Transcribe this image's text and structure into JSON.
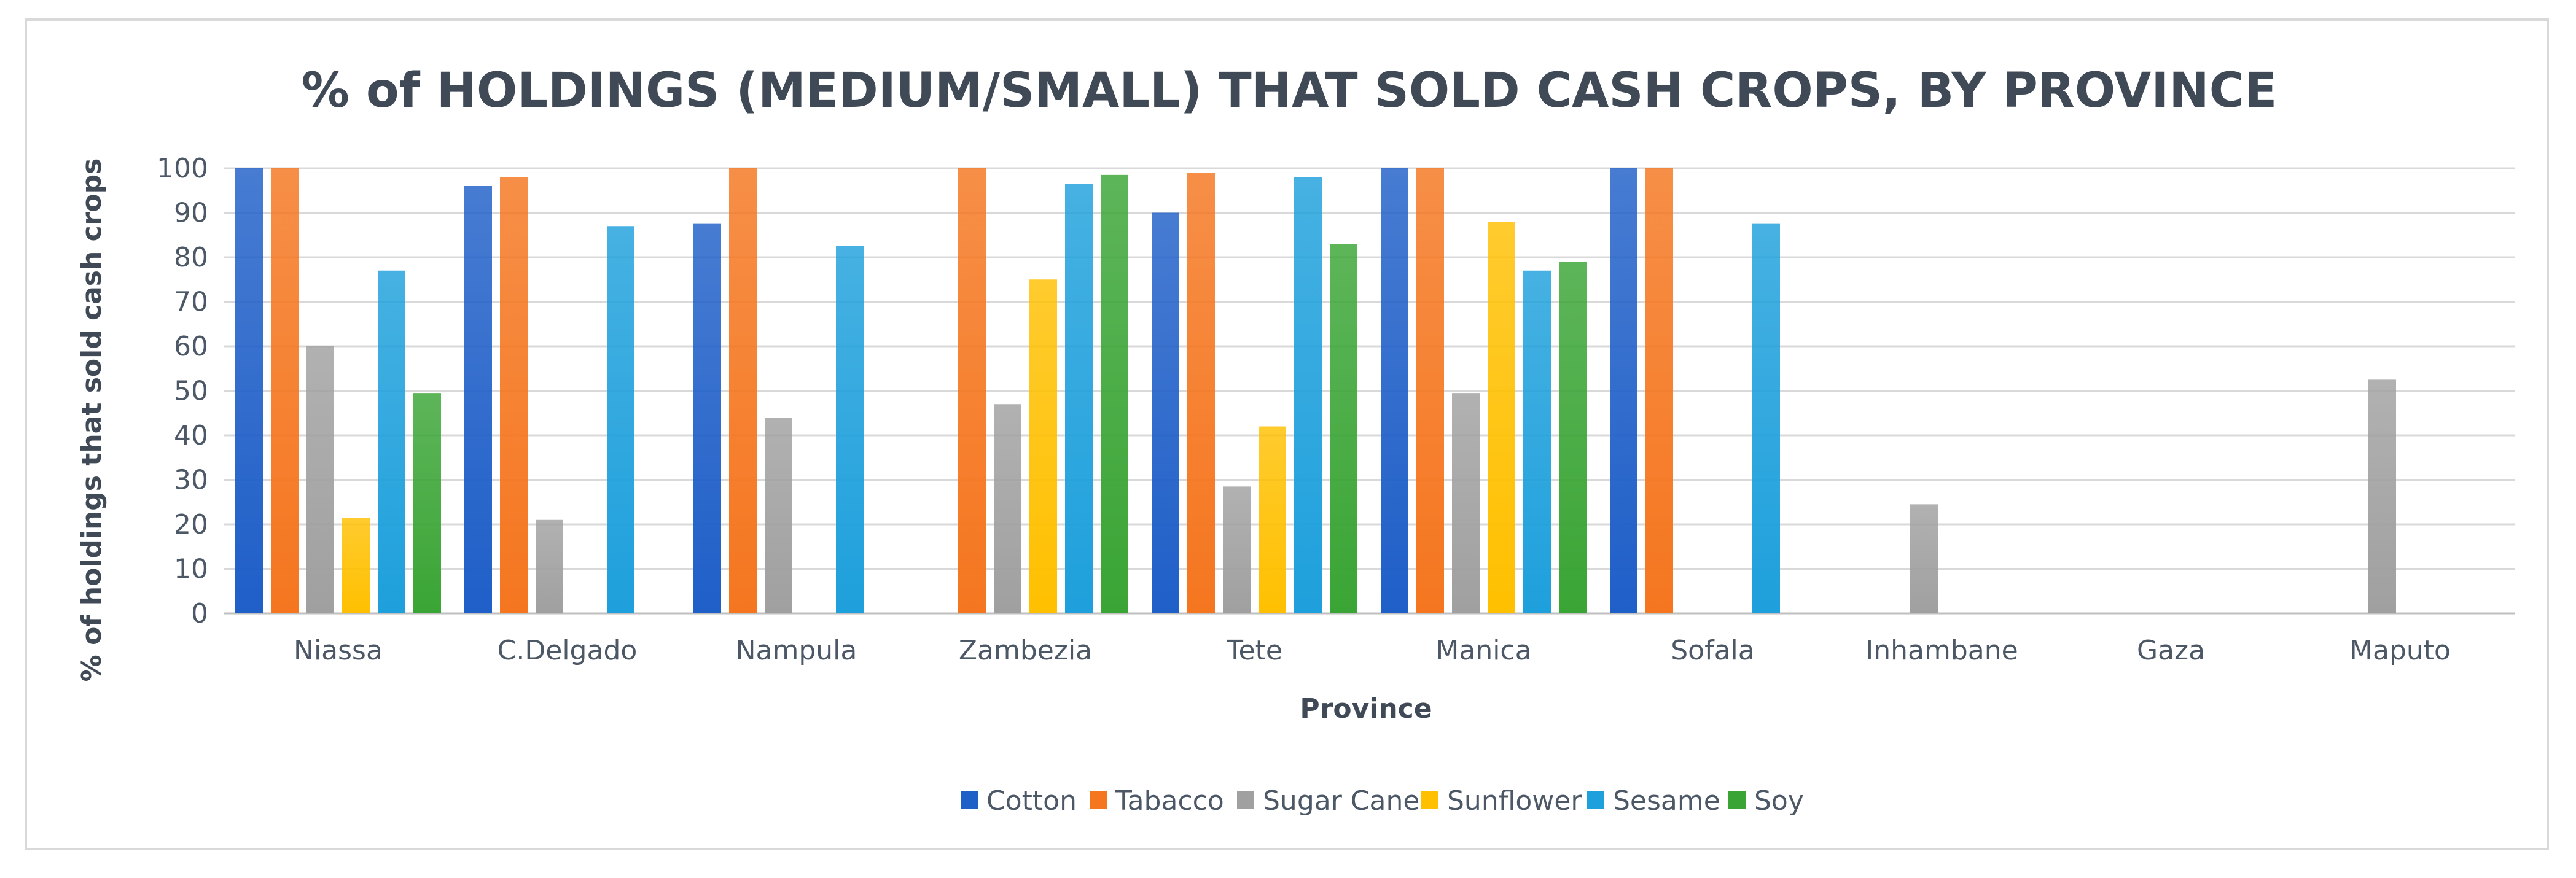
{
  "chart_data": {
    "type": "bar",
    "title": "% of HOLDINGS (MEDIUM/SMALL) THAT SOLD CASH CROPS, BY PROVINCE",
    "xlabel": "Province",
    "ylabel": "% of holdings that sold cash crops",
    "ylim": [
      0,
      100
    ],
    "yticks": [
      0,
      10,
      20,
      30,
      40,
      50,
      60,
      70,
      80,
      90,
      100
    ],
    "grid": true,
    "legend": "bottom",
    "categories": [
      "Niassa",
      "C.Delgado",
      "Nampula",
      "Zambezia",
      "Tete",
      "Manica",
      "Sofala",
      "Inhambane",
      "Gaza",
      "Maputo"
    ],
    "series": [
      {
        "name": "Cotton",
        "color": "#1f5fc8",
        "values": [
          100,
          96,
          87.5,
          null,
          90,
          100,
          100,
          null,
          null,
          null
        ]
      },
      {
        "name": "Tabacco",
        "color": "#f5761f",
        "values": [
          100,
          98,
          100,
          100,
          99,
          100,
          100,
          null,
          null,
          null
        ]
      },
      {
        "name": "Sugar Cane",
        "color": "#a0a0a0",
        "values": [
          60,
          21,
          44,
          47,
          28.5,
          49.5,
          null,
          24.5,
          null,
          52.5
        ]
      },
      {
        "name": "Sunflower",
        "color": "#ffc000",
        "values": [
          21.5,
          null,
          null,
          75,
          42,
          88,
          null,
          null,
          null,
          null
        ]
      },
      {
        "name": "Sesame",
        "color": "#1ea0dc",
        "values": [
          77,
          87,
          82.5,
          96.5,
          98,
          77,
          87.5,
          null,
          null,
          null
        ]
      },
      {
        "name": "Soy",
        "color": "#3aa535",
        "values": [
          49.5,
          null,
          null,
          98.5,
          83,
          79,
          null,
          null,
          null,
          null
        ]
      }
    ]
  }
}
